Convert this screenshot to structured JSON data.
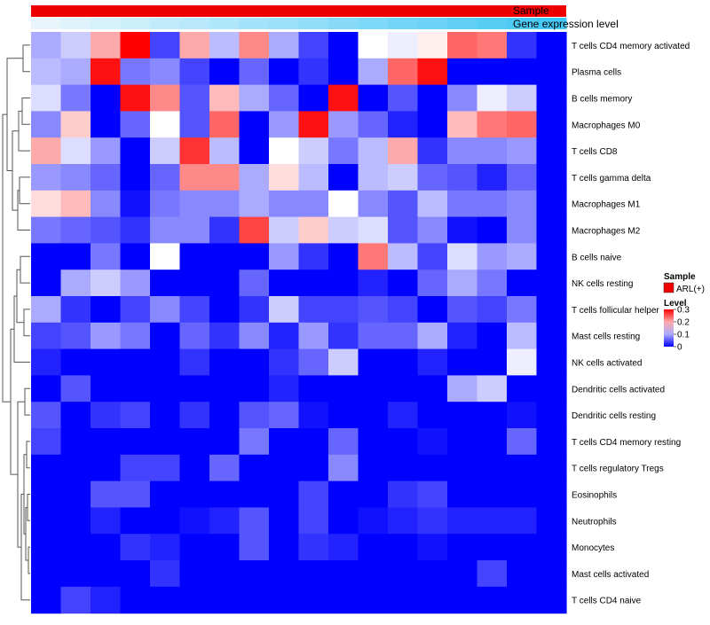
{
  "chart_data": {
    "type": "heatmap",
    "title": "",
    "annotations": {
      "sample_label": "Sample",
      "expression_label": "Gene expression level"
    },
    "legend": {
      "placement": "right",
      "sample_title": "Sample",
      "sample_entry": "ARL(+)",
      "sample_color": "#ee0000",
      "level_title": "Level",
      "level_ticks": [
        "0.3",
        "0.2",
        "0.1",
        "0"
      ],
      "level_tick_values": [
        0.3,
        0.2,
        0.1,
        0
      ],
      "color_low": "#0000ff",
      "color_mid": "#ffffff",
      "color_high": "#ff0000",
      "range": [
        0,
        0.3
      ]
    },
    "expression_gradient": [
      "#e8f6fc",
      "#44c8f5"
    ],
    "columns": 18,
    "rows": [
      "T cells CD4 memory activated",
      "Plasma cells",
      "B cells memory",
      "Macrophages M0",
      "T cells CD8",
      "T cells gamma delta",
      "Macrophages M1",
      "Macrophages M2",
      "B cells naive",
      "NK cells resting",
      "T cells follicular helper",
      "Mast cells resting",
      "NK cells activated",
      "Dendritic cells activated",
      "Dendritic cells resting",
      "T cells CD4 memory resting",
      "T cells regulatory  Tregs",
      "Eosinophils",
      "Neutrophils",
      "Monocytes",
      "Mast cells activated",
      "T cells CD4 naive"
    ],
    "values": [
      [
        0.1,
        0.12,
        0.2,
        0.3,
        0.04,
        0.2,
        0.11,
        0.22,
        0.1,
        0.04,
        0.0,
        0.15,
        0.14,
        0.16,
        0.24,
        0.23,
        0.03,
        0.0
      ],
      [
        0.11,
        0.1,
        0.29,
        0.07,
        0.08,
        0.04,
        0.0,
        0.06,
        0.0,
        0.03,
        0.0,
        0.1,
        0.24,
        0.29,
        0.0,
        0.0,
        0.0,
        0.0
      ],
      [
        0.13,
        0.07,
        0.0,
        0.29,
        0.22,
        0.05,
        0.19,
        0.1,
        0.06,
        0.0,
        0.29,
        0.0,
        0.05,
        0.0,
        0.08,
        0.14,
        0.12,
        0.0
      ],
      [
        0.08,
        0.18,
        0.0,
        0.06,
        0.15,
        0.05,
        0.24,
        0.0,
        0.09,
        0.29,
        0.09,
        0.06,
        0.02,
        0.0,
        0.19,
        0.23,
        0.24,
        0.0
      ],
      [
        0.2,
        0.13,
        0.09,
        0.0,
        0.12,
        0.27,
        0.11,
        0.0,
        0.15,
        0.12,
        0.07,
        0.11,
        0.2,
        0.03,
        0.08,
        0.08,
        0.09,
        0.0
      ],
      [
        0.09,
        0.08,
        0.06,
        0.0,
        0.06,
        0.22,
        0.22,
        0.1,
        0.17,
        0.11,
        0.0,
        0.11,
        0.12,
        0.06,
        0.05,
        0.02,
        0.06,
        0.0
      ],
      [
        0.17,
        0.19,
        0.08,
        0.01,
        0.07,
        0.08,
        0.08,
        0.1,
        0.08,
        0.08,
        0.15,
        0.08,
        0.05,
        0.11,
        0.07,
        0.07,
        0.08,
        0.0
      ],
      [
        0.07,
        0.06,
        0.05,
        0.03,
        0.08,
        0.08,
        0.03,
        0.26,
        0.12,
        0.18,
        0.12,
        0.13,
        0.05,
        0.08,
        0.01,
        0.0,
        0.08,
        0.0
      ],
      [
        0.0,
        0.0,
        0.07,
        0.0,
        0.15,
        0.0,
        0.0,
        0.0,
        0.09,
        0.03,
        0.0,
        0.23,
        0.11,
        0.04,
        0.13,
        0.09,
        0.1,
        0.0
      ],
      [
        0.0,
        0.1,
        0.12,
        0.09,
        0.0,
        0.0,
        0.0,
        0.06,
        0.0,
        0.0,
        0.0,
        0.02,
        0.0,
        0.06,
        0.1,
        0.07,
        0.0,
        0.0
      ],
      [
        0.1,
        0.03,
        0.0,
        0.04,
        0.08,
        0.04,
        0.0,
        0.03,
        0.12,
        0.04,
        0.04,
        0.05,
        0.04,
        0.0,
        0.05,
        0.04,
        0.07,
        0.0
      ],
      [
        0.04,
        0.05,
        0.09,
        0.07,
        0.0,
        0.06,
        0.03,
        0.08,
        0.02,
        0.09,
        0.03,
        0.06,
        0.06,
        0.1,
        0.02,
        0.0,
        0.11,
        0.0
      ],
      [
        0.02,
        0.0,
        0.0,
        0.0,
        0.0,
        0.03,
        0.0,
        0.0,
        0.03,
        0.06,
        0.12,
        0.0,
        0.0,
        0.02,
        0.0,
        0.0,
        0.14,
        0.0
      ],
      [
        0.0,
        0.05,
        0.0,
        0.0,
        0.0,
        0.0,
        0.0,
        0.0,
        0.02,
        0.0,
        0.0,
        0.0,
        0.0,
        0.0,
        0.1,
        0.12,
        0.0,
        0.0
      ],
      [
        0.05,
        0.0,
        0.03,
        0.04,
        0.0,
        0.03,
        0.0,
        0.05,
        0.06,
        0.01,
        0.0,
        0.0,
        0.02,
        0.0,
        0.0,
        0.0,
        0.01,
        0.0
      ],
      [
        0.04,
        0.0,
        0.0,
        0.0,
        0.0,
        0.0,
        0.0,
        0.07,
        0.0,
        0.0,
        0.06,
        0.0,
        0.0,
        0.01,
        0.0,
        0.0,
        0.06,
        0.0
      ],
      [
        0.0,
        0.0,
        0.0,
        0.04,
        0.04,
        0.0,
        0.06,
        0.0,
        0.0,
        0.0,
        0.08,
        0.0,
        0.0,
        0.0,
        0.0,
        0.0,
        0.0,
        0.0
      ],
      [
        0.0,
        0.0,
        0.05,
        0.05,
        0.0,
        0.0,
        0.0,
        0.0,
        0.0,
        0.04,
        0.0,
        0.0,
        0.03,
        0.04,
        0.0,
        0.0,
        0.0,
        0.0
      ],
      [
        0.0,
        0.0,
        0.02,
        0.0,
        0.0,
        0.01,
        0.02,
        0.05,
        0.0,
        0.04,
        0.0,
        0.01,
        0.02,
        0.03,
        0.02,
        0.02,
        0.02,
        0.0
      ],
      [
        0.0,
        0.0,
        0.0,
        0.03,
        0.02,
        0.0,
        0.0,
        0.05,
        0.0,
        0.03,
        0.02,
        0.0,
        0.0,
        0.01,
        0.0,
        0.0,
        0.0,
        0.0
      ],
      [
        0.0,
        0.0,
        0.0,
        0.0,
        0.03,
        0.0,
        0.0,
        0.0,
        0.0,
        0.0,
        0.0,
        0.0,
        0.0,
        0.0,
        0.0,
        0.04,
        0.0,
        0.0
      ],
      [
        0.0,
        0.04,
        0.02,
        0.0,
        0.0,
        0.0,
        0.0,
        0.0,
        0.0,
        0.0,
        0.0,
        0.0,
        0.0,
        0.0,
        0.0,
        0.0,
        0.0,
        0.0
      ]
    ]
  }
}
